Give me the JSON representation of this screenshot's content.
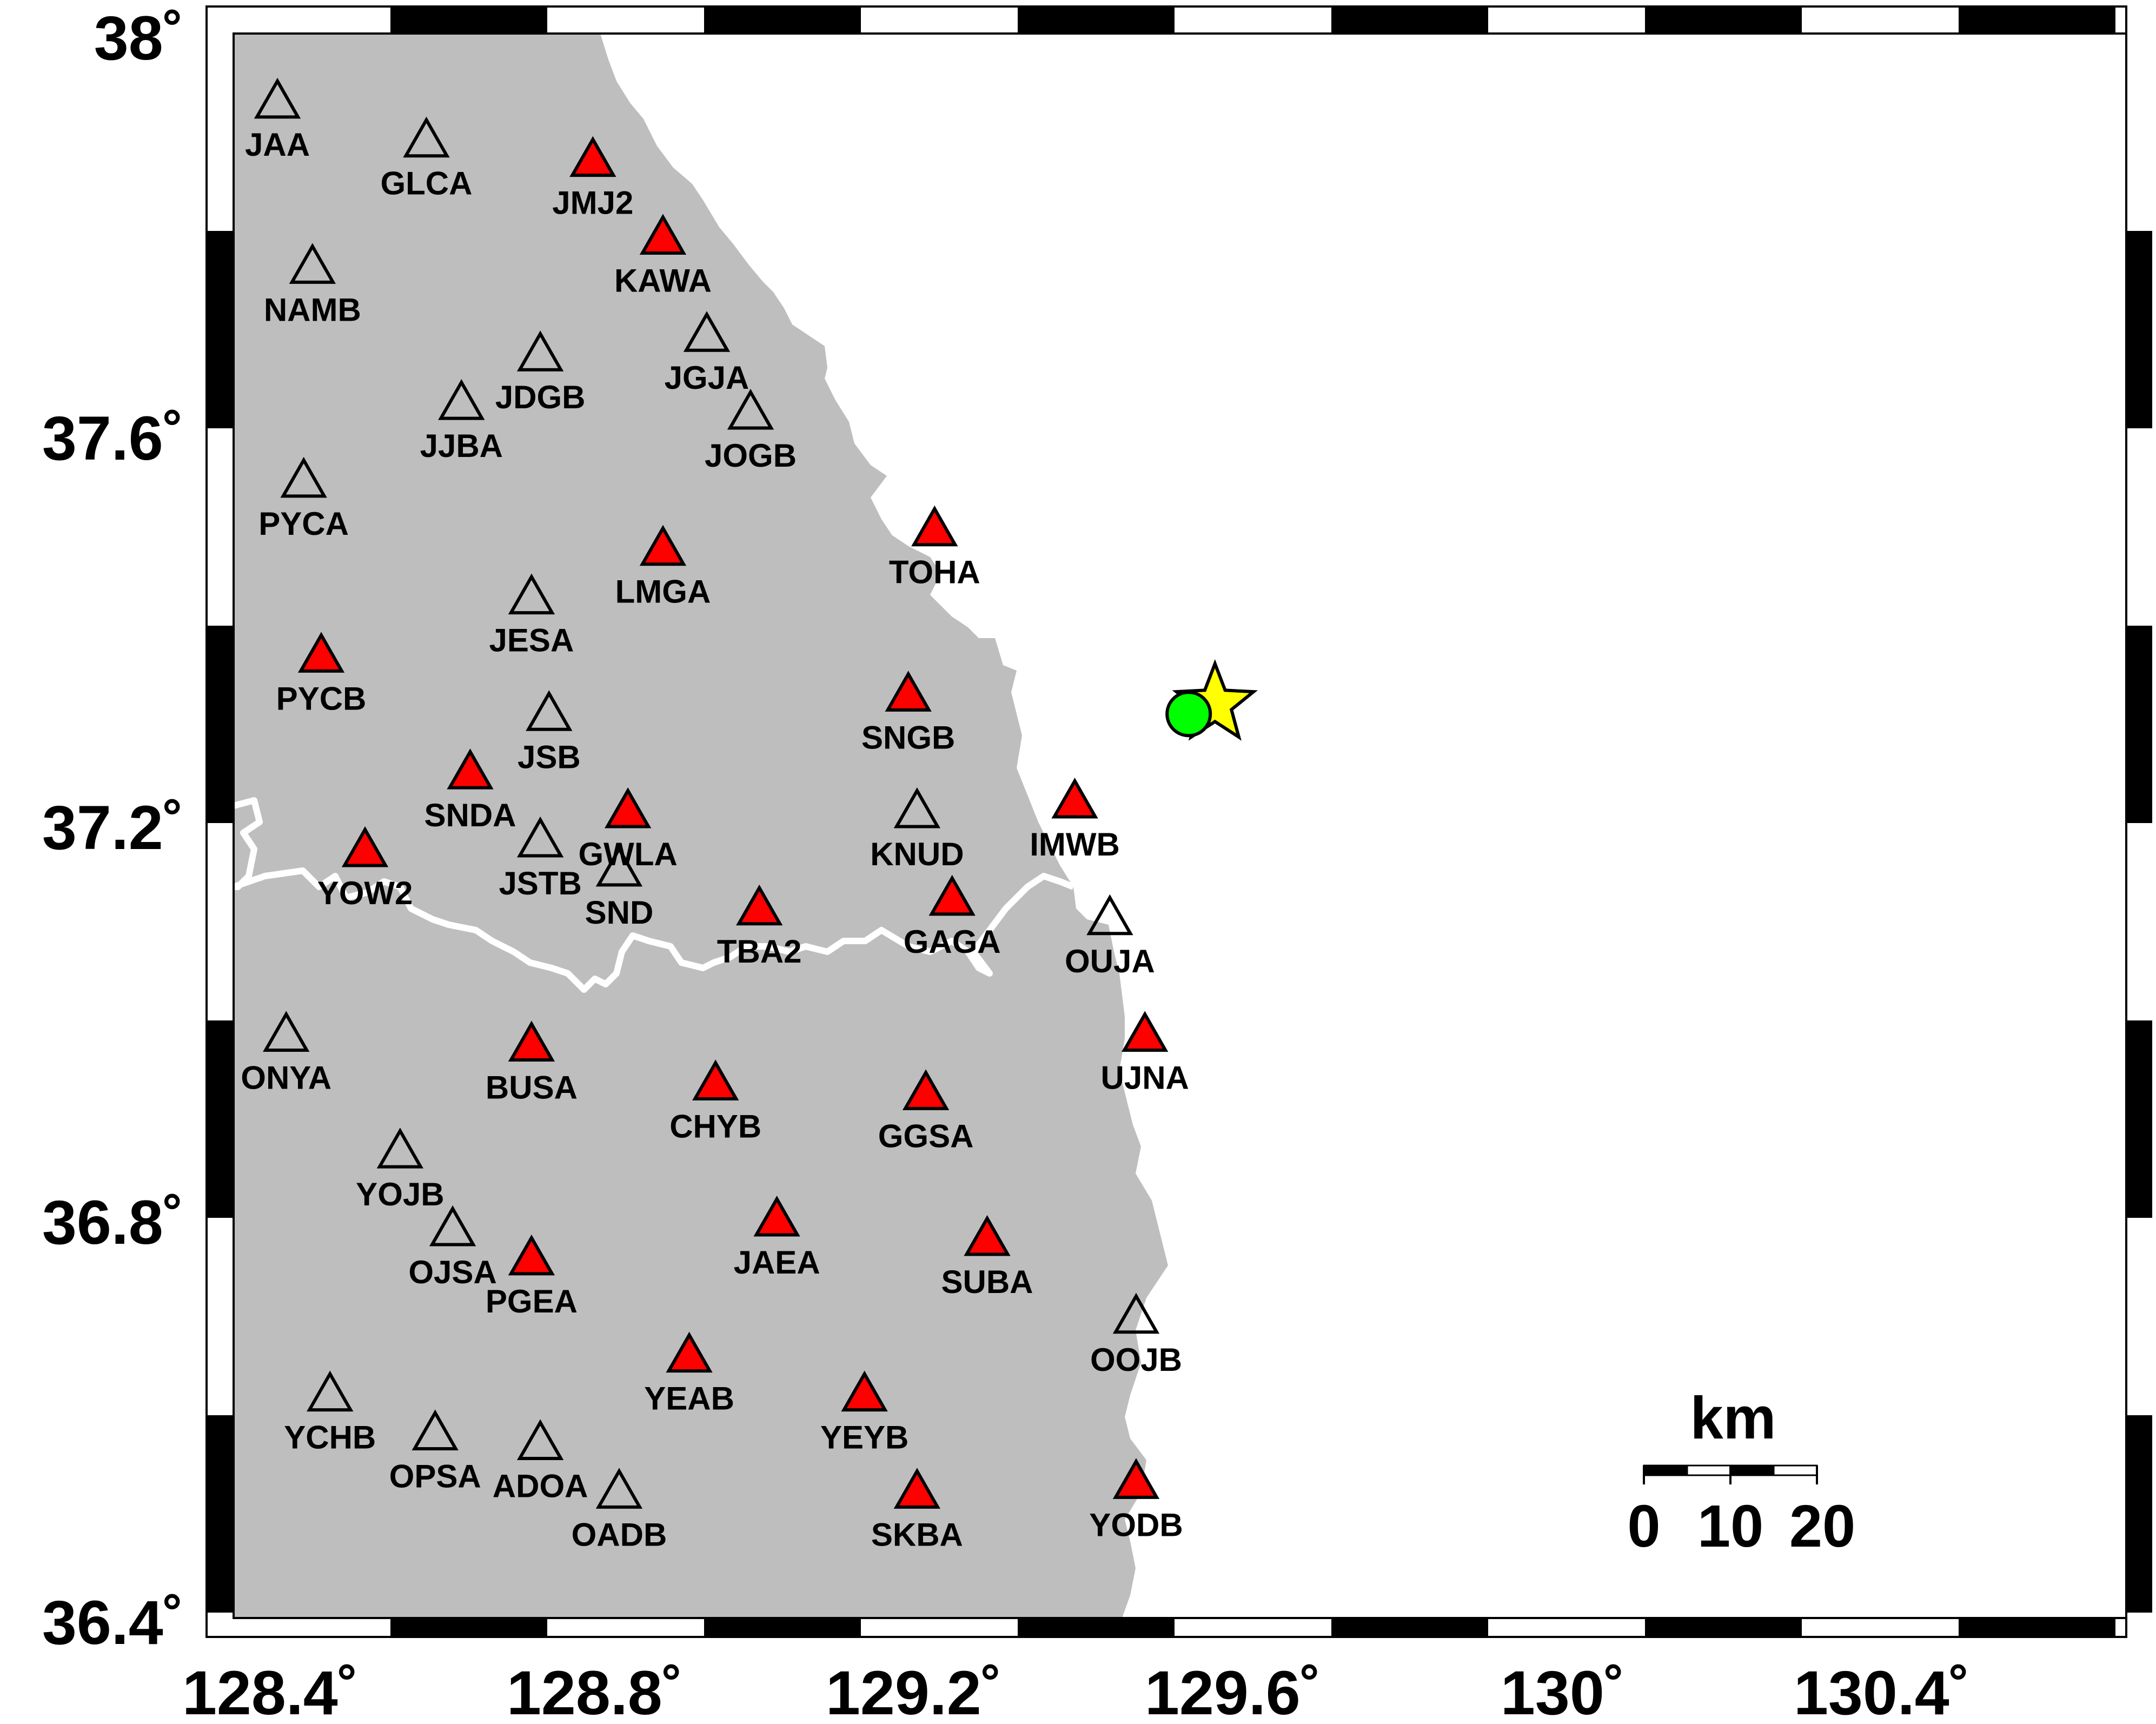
{
  "map": {
    "x_ticks": [
      "128.4˚",
      "128.8˚",
      "129.2˚",
      "129.6˚",
      "130˚",
      "130.4˚"
    ],
    "y_ticks": [
      "38˚",
      "37.6˚",
      "37.2˚",
      "36.8˚",
      "36.4˚"
    ],
    "x_tick_values": [
      128.4,
      128.8,
      129.2,
      129.6,
      130.0,
      130.4
    ],
    "y_tick_values": [
      38.0,
      37.6,
      37.2,
      36.8,
      36.4
    ],
    "x_range": [
      128.37,
      130.53
    ],
    "y_range": [
      36.39,
      38.02
    ],
    "colors": {
      "land": "#bebebe",
      "sea": "#ffffff",
      "boundary": "#ffffff",
      "used_station": "#ff0000",
      "other_station": "#ffffff",
      "epicenter_star": "#ffff00",
      "event_circle": "#00ff00"
    },
    "scale_bar": {
      "unit": "km",
      "labels": [
        "0",
        "10",
        "20"
      ]
    },
    "event": {
      "star": {
        "lon": 129.49,
        "lat": 37.33
      },
      "circle": {
        "lon": 129.46,
        "lat": 37.32
      }
    },
    "stations": [
      {
        "code": "JAA",
        "lon": 128.42,
        "lat": 37.95,
        "filled": false
      },
      {
        "code": "GLCA",
        "lon": 128.59,
        "lat": 37.91,
        "filled": false
      },
      {
        "code": "JMJ2",
        "lon": 128.78,
        "lat": 37.89,
        "filled": true
      },
      {
        "code": "KAWA",
        "lon": 128.86,
        "lat": 37.81,
        "filled": true
      },
      {
        "code": "NAMB",
        "lon": 128.46,
        "lat": 37.78,
        "filled": false
      },
      {
        "code": "JGJA",
        "lon": 128.91,
        "lat": 37.71,
        "filled": false
      },
      {
        "code": "JDGB",
        "lon": 128.72,
        "lat": 37.69,
        "filled": false
      },
      {
        "code": "JJBA",
        "lon": 128.63,
        "lat": 37.64,
        "filled": false
      },
      {
        "code": "JOGB",
        "lon": 128.96,
        "lat": 37.63,
        "filled": false
      },
      {
        "code": "PYCA",
        "lon": 128.45,
        "lat": 37.56,
        "filled": false
      },
      {
        "code": "TOHA",
        "lon": 129.17,
        "lat": 37.51,
        "filled": true
      },
      {
        "code": "LMGA",
        "lon": 128.86,
        "lat": 37.49,
        "filled": true
      },
      {
        "code": "JESA",
        "lon": 128.71,
        "lat": 37.44,
        "filled": false
      },
      {
        "code": "PYCB",
        "lon": 128.47,
        "lat": 37.38,
        "filled": true
      },
      {
        "code": "SNGB",
        "lon": 129.14,
        "lat": 37.34,
        "filled": true
      },
      {
        "code": "JSB",
        "lon": 128.73,
        "lat": 37.32,
        "filled": false
      },
      {
        "code": "SNDA",
        "lon": 128.64,
        "lat": 37.26,
        "filled": true
      },
      {
        "code": "GWLA",
        "lon": 128.82,
        "lat": 37.22,
        "filled": true
      },
      {
        "code": "KNUD",
        "lon": 129.15,
        "lat": 37.22,
        "filled": false
      },
      {
        "code": "IMWB",
        "lon": 129.33,
        "lat": 37.23,
        "filled": true
      },
      {
        "code": "YOW2",
        "lon": 128.52,
        "lat": 37.18,
        "filled": true
      },
      {
        "code": "JSTB",
        "lon": 128.72,
        "lat": 37.19,
        "filled": false
      },
      {
        "code": "SND",
        "lon": 128.81,
        "lat": 37.16,
        "filled": false
      },
      {
        "code": "TBA2",
        "lon": 128.97,
        "lat": 37.12,
        "filled": true
      },
      {
        "code": "GAGA",
        "lon": 129.19,
        "lat": 37.13,
        "filled": true
      },
      {
        "code": "OUJA",
        "lon": 129.37,
        "lat": 37.11,
        "filled": false
      },
      {
        "code": "UJNA",
        "lon": 129.41,
        "lat": 36.99,
        "filled": true
      },
      {
        "code": "ONYA",
        "lon": 128.43,
        "lat": 36.99,
        "filled": false
      },
      {
        "code": "BUSA",
        "lon": 128.71,
        "lat": 36.98,
        "filled": true
      },
      {
        "code": "CHYB",
        "lon": 128.92,
        "lat": 36.94,
        "filled": true
      },
      {
        "code": "GGSA",
        "lon": 129.16,
        "lat": 36.93,
        "filled": true
      },
      {
        "code": "YOJB",
        "lon": 128.56,
        "lat": 36.87,
        "filled": false
      },
      {
        "code": "OJSA",
        "lon": 128.62,
        "lat": 36.79,
        "filled": false
      },
      {
        "code": "JAEA",
        "lon": 128.99,
        "lat": 36.8,
        "filled": true
      },
      {
        "code": "SUBA",
        "lon": 129.23,
        "lat": 36.78,
        "filled": true
      },
      {
        "code": "PGEA",
        "lon": 128.71,
        "lat": 36.76,
        "filled": true
      },
      {
        "code": "OOJB",
        "lon": 129.4,
        "lat": 36.7,
        "filled": false
      },
      {
        "code": "YEAB",
        "lon": 128.89,
        "lat": 36.66,
        "filled": true
      },
      {
        "code": "YEYB",
        "lon": 129.09,
        "lat": 36.62,
        "filled": true
      },
      {
        "code": "YCHB",
        "lon": 128.48,
        "lat": 36.62,
        "filled": false
      },
      {
        "code": "OPSA",
        "lon": 128.6,
        "lat": 36.58,
        "filled": false
      },
      {
        "code": "ADOA",
        "lon": 128.72,
        "lat": 36.57,
        "filled": false
      },
      {
        "code": "OADB",
        "lon": 128.81,
        "lat": 36.52,
        "filled": false
      },
      {
        "code": "SKBA",
        "lon": 129.15,
        "lat": 36.52,
        "filled": true
      },
      {
        "code": "YODB",
        "lon": 129.4,
        "lat": 36.53,
        "filled": true
      }
    ]
  }
}
